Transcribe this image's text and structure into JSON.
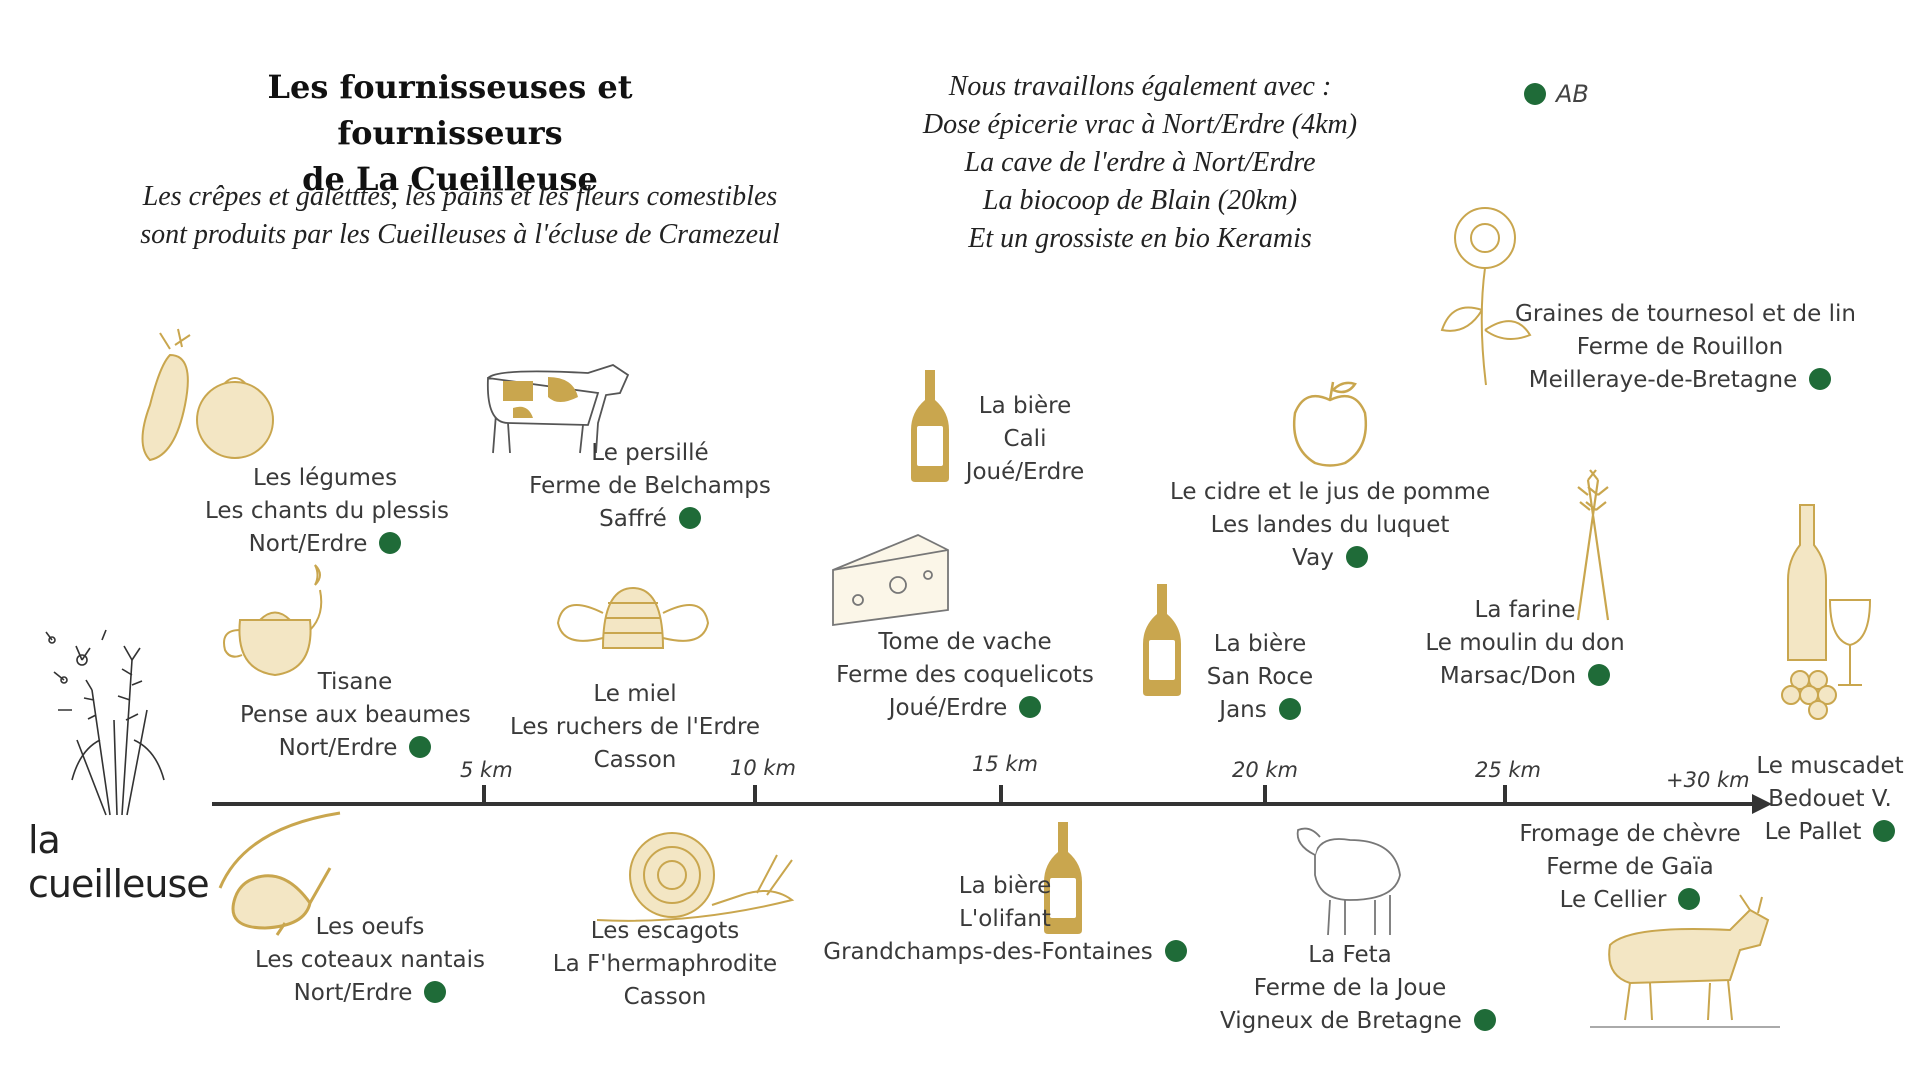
{
  "title": [
    "Les fournisseuses et fournisseurs",
    "de La Cueilleuse"
  ],
  "subtitle": [
    "Les crêpes et galetttes, les pains et les fleurs comestibles",
    "sont produits par les Cueilleuses à l'écluse de Cramezeul"
  ],
  "also": [
    "Nous travaillons également avec :",
    "Dose épicerie vrac à Nort/Erdre (4km)",
    "La cave de l'erdre à Nort/Erdre",
    "La biocoop de Blain (20km)",
    "Et un grossiste en bio Keramis"
  ],
  "legend": {
    "label": "AB",
    "color": "#1f6b38"
  },
  "brand": "la cueilleuse",
  "km_labels": [
    "5 km",
    "10 km",
    "15 km",
    "20 km",
    "25 km",
    "+30 km"
  ],
  "suppliers": [
    {
      "id": "legumes",
      "icon": "vegetables-icon",
      "lines": [
        "Les légumes",
        "Les chants du plessis",
        "Nort/Erdre"
      ],
      "ab": true
    },
    {
      "id": "persille",
      "icon": "cow-icon",
      "lines": [
        "Le persillé",
        "Ferme de Belchamps",
        "Saffré"
      ],
      "ab": true
    },
    {
      "id": "biere-cali",
      "icon": "beer-bottle-icon",
      "lines": [
        "La bière",
        "Cali",
        "Joué/Erdre"
      ],
      "ab": false
    },
    {
      "id": "cidre",
      "icon": "apple-icon",
      "lines": [
        "Le cidre et le jus de pomme",
        "Les landes du luquet",
        "Vay"
      ],
      "ab": true
    },
    {
      "id": "tournesol",
      "icon": "sunflower-icon",
      "lines": [
        "Graines de tournesol et de lin",
        "Ferme de Rouillon",
        "Meilleraye-de-Bretagne"
      ],
      "ab": true
    },
    {
      "id": "tisane",
      "icon": "teapot-icon",
      "lines": [
        "Tisane",
        "Pense aux beaumes",
        "Nort/Erdre"
      ],
      "ab": true
    },
    {
      "id": "miel",
      "icon": "beehive-icon",
      "lines": [
        "Le miel",
        "Les ruchers de l'Erdre",
        "Casson"
      ],
      "ab": false
    },
    {
      "id": "tome",
      "icon": "cheese-icon",
      "lines": [
        "Tome de vache",
        "Ferme des coquelicots",
        "Joué/Erdre"
      ],
      "ab": true
    },
    {
      "id": "biere-sanroce",
      "icon": "beer-bottle-icon",
      "lines": [
        "La bière",
        "San Roce",
        "Jans"
      ],
      "ab": true
    },
    {
      "id": "farine",
      "icon": "wheat-icon",
      "lines": [
        "La farine",
        "Le moulin du don",
        "Marsac/Don"
      ],
      "ab": true
    },
    {
      "id": "muscadet",
      "icon": "wine-icon",
      "lines": [
        "Le muscadet",
        "Bedouet V.",
        "Le Pallet"
      ],
      "ab": true
    },
    {
      "id": "oeufs",
      "icon": "hen-icon",
      "lines": [
        "Les oeufs",
        "Les coteaux nantais",
        "Nort/Erdre"
      ],
      "ab": true
    },
    {
      "id": "escargots",
      "icon": "snail-icon",
      "lines": [
        "Les escagots",
        "La F'hermaphrodite",
        "Casson"
      ],
      "ab": false
    },
    {
      "id": "biere-olifant",
      "icon": "beer-bottle-icon",
      "lines": [
        "La bière",
        "L'olifant",
        "Grandchamps-des-Fontaines"
      ],
      "ab": true
    },
    {
      "id": "feta",
      "icon": "sheep-icon",
      "lines": [
        "La Feta",
        "Ferme de la Joue",
        "Vigneux de Bretagne"
      ],
      "ab": true
    },
    {
      "id": "chevre",
      "icon": "goat-icon",
      "lines": [
        "Fromage de chèvre",
        "Ferme de Gaïa",
        "Le Cellier"
      ],
      "ab": true
    }
  ]
}
